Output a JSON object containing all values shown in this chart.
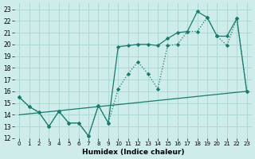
{
  "xlabel": "Humidex (Indice chaleur)",
  "bg_color": "#ceecea",
  "grid_color": "#aed8d4",
  "line_color": "#1a7a6e",
  "xlim": [
    -0.5,
    23.5
  ],
  "ylim": [
    12,
    23.5
  ],
  "xticks": [
    0,
    1,
    2,
    3,
    4,
    5,
    6,
    7,
    8,
    9,
    10,
    11,
    12,
    13,
    14,
    15,
    16,
    17,
    18,
    19,
    20,
    21,
    22,
    23
  ],
  "yticks": [
    12,
    13,
    14,
    15,
    16,
    17,
    18,
    19,
    20,
    21,
    22,
    23
  ],
  "series1_x": [
    0,
    1,
    2,
    3,
    4,
    5,
    6,
    7,
    8,
    9,
    10,
    11,
    12,
    13,
    14,
    15,
    16,
    17,
    18,
    19,
    20,
    21,
    22,
    23
  ],
  "series1_y": [
    15.5,
    14.7,
    14.2,
    13.0,
    14.3,
    13.3,
    13.3,
    12.2,
    14.8,
    13.3,
    16.2,
    17.5,
    18.5,
    17.5,
    16.2,
    19.9,
    20.0,
    21.1,
    21.1,
    22.3,
    20.7,
    19.9,
    22.2,
    16.0
  ],
  "series2_x": [
    0,
    1,
    2,
    3,
    4,
    5,
    6,
    7,
    8,
    9,
    10,
    11,
    12,
    13,
    14,
    15,
    16,
    17,
    18,
    19,
    20,
    21,
    22,
    23
  ],
  "series2_y": [
    15.5,
    14.7,
    14.2,
    13.0,
    14.3,
    13.3,
    13.3,
    12.2,
    14.8,
    13.3,
    19.8,
    19.9,
    20.0,
    20.0,
    19.9,
    20.5,
    21.0,
    21.1,
    22.8,
    22.3,
    20.7,
    20.7,
    22.2,
    16.0
  ],
  "series3_x": [
    0,
    23
  ],
  "series3_y": [
    14.0,
    16.0
  ]
}
